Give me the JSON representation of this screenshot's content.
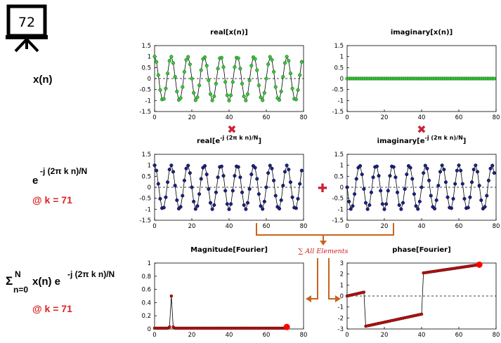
{
  "slide_number": "72",
  "row_labels": {
    "signal": "x(n)",
    "kernel_base": "e",
    "kernel_exp": "-j (2π k n)/N",
    "kernel_k": "@ k = 71",
    "sum_sigma": "Σ",
    "sum_top": "N",
    "sum_bottom": "n=0",
    "sum_body": "x(n) e",
    "sum_exp": "-j (2π k n)/N",
    "sum_k": "@ k = 71"
  },
  "operators": {
    "multiply": "✖",
    "add": "✚",
    "sum_label": "∑ All Elements"
  },
  "colors": {
    "green_marker": "#33cc33",
    "blue_marker": "#1a237e",
    "red_marker": "#cc1111",
    "highlight": "#ff0000",
    "arrow": "#c8641e",
    "operator": "#cc2233"
  },
  "chart_data": [
    {
      "id": "real_x",
      "type": "line",
      "title": "real[x(n)]",
      "xlim": [
        0,
        80
      ],
      "ylim": [
        -1.5,
        1.5
      ],
      "xticks": [
        0,
        20,
        40,
        60,
        80
      ],
      "yticks": [
        1.5,
        1,
        0.5,
        0,
        -0.5,
        -1,
        -1.5
      ],
      "function": "cos",
      "freq": 9,
      "N": 80,
      "n_max": 79,
      "marker": "green"
    },
    {
      "id": "imag_x",
      "type": "line",
      "title": "imaginary[x(n)]",
      "xlim": [
        0,
        80
      ],
      "ylim": [
        -1.5,
        1.5
      ],
      "xticks": [
        0,
        20,
        40,
        60,
        80
      ],
      "yticks": [
        1.5,
        1,
        0.5,
        0,
        -0.5,
        -1,
        -1.5
      ],
      "function": "zero",
      "N": 80,
      "n_max": 79,
      "marker": "green"
    },
    {
      "id": "real_e",
      "type": "line",
      "title_main": "real[e",
      "title_sup": "-j (2π k n)/N",
      "title_end": "]",
      "xlim": [
        0,
        80
      ],
      "ylim": [
        -1.5,
        1.5
      ],
      "xticks": [
        0,
        20,
        40,
        60,
        80
      ],
      "yticks": [
        1.5,
        1,
        0.5,
        0,
        -0.5,
        -1,
        -1.5
      ],
      "function": "cos",
      "freq": 71,
      "N": 80,
      "n_max": 79,
      "marker": "blue"
    },
    {
      "id": "imag_e",
      "type": "line",
      "title_main": "imaginary[e",
      "title_sup": "-j (2π k n)/N",
      "title_end": "]",
      "xlim": [
        0,
        80
      ],
      "ylim": [
        -1.5,
        1.5
      ],
      "xticks": [
        0,
        20,
        40,
        60,
        80
      ],
      "yticks": [
        1.5,
        1,
        0.5,
        0,
        -0.5,
        -1,
        -1.5
      ],
      "function": "sin",
      "freq": 71,
      "N": 80,
      "n_max": 79,
      "marker": "blue"
    },
    {
      "id": "magnitude",
      "type": "line",
      "title": "Magnitude[Fourier]",
      "xlim": [
        0,
        80
      ],
      "ylim": [
        0,
        1
      ],
      "xticks": [
        0,
        20,
        40,
        60,
        80
      ],
      "yticks": [
        1,
        0.8,
        0.6,
        0.4,
        0.2,
        0
      ],
      "function": "magnitude",
      "k_max": 71,
      "peak_k": 9,
      "peak_value": 0.5,
      "baseline": 0.012,
      "highlight_k": 71,
      "highlight_value": 0.03,
      "marker": "red"
    },
    {
      "id": "phase",
      "type": "line",
      "title": "phase[Fourier]",
      "xlim": [
        0,
        80
      ],
      "ylim": [
        -3,
        3
      ],
      "xticks": [
        0,
        20,
        40,
        60,
        80
      ],
      "yticks": [
        3,
        2,
        1,
        0,
        -1,
        -2,
        -3
      ],
      "function": "phase",
      "k_max": 71,
      "segments": [
        {
          "from": 0,
          "to": 9,
          "start": 0.0,
          "end": 0.35
        },
        {
          "from": 10,
          "to": 40,
          "start": -2.75,
          "end": -1.65
        },
        {
          "from": 41,
          "to": 71,
          "start": 2.1,
          "end": 2.85
        }
      ],
      "highlight_k": 71,
      "highlight_value": 2.85,
      "marker": "red"
    }
  ]
}
